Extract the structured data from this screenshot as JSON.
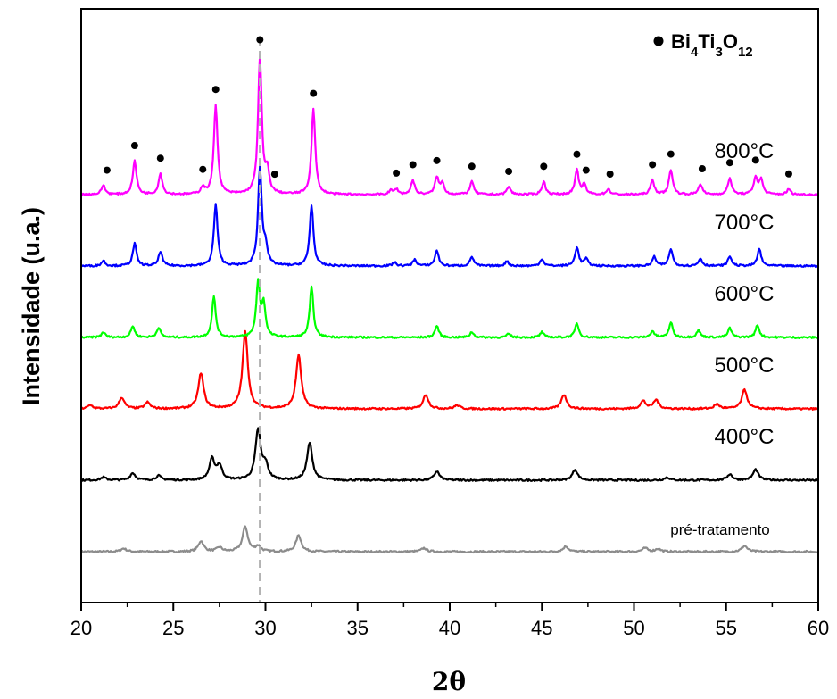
{
  "chart_data": {
    "type": "line",
    "xlabel_prefix": "2",
    "xlabel_symbol": "θ",
    "ylabel": "Intensidade (u.a.)",
    "xlim": [
      20,
      60
    ],
    "xticks": [
      20,
      25,
      30,
      35,
      40,
      45,
      50,
      55,
      60
    ],
    "y_ticks_shown": false,
    "grid": false,
    "reference_line_x": 29.7,
    "legend": {
      "position": "top-right",
      "marker": "filled-circle",
      "parts": [
        {
          "text": "Bi",
          "sub": false
        },
        {
          "text": "4",
          "sub": true
        },
        {
          "text": "Ti",
          "sub": false
        },
        {
          "text": "3",
          "sub": true
        },
        {
          "text": "O",
          "sub": false
        },
        {
          "text": "12",
          "sub": true
        }
      ]
    },
    "series": [
      {
        "name": "pré-tratamento",
        "color": "#8c8c8c",
        "baseline": 0,
        "peaks": [
          [
            22.3,
            0.9
          ],
          [
            26.5,
            3
          ],
          [
            27.5,
            1.2
          ],
          [
            28.9,
            7
          ],
          [
            29.6,
            1.5
          ],
          [
            31.8,
            4.6
          ],
          [
            38.6,
            1
          ],
          [
            46.3,
            1.5
          ],
          [
            50.6,
            1
          ],
          [
            51.3,
            0.8
          ],
          [
            56.0,
            1.7
          ]
        ]
      },
      {
        "name": "400°C",
        "color": "#000000",
        "baseline": 20,
        "peaks": [
          [
            21.2,
            0.8
          ],
          [
            22.8,
            2
          ],
          [
            24.2,
            1.2
          ],
          [
            27.1,
            5.8
          ],
          [
            27.5,
            4
          ],
          [
            29.6,
            14
          ],
          [
            30.0,
            4
          ],
          [
            32.4,
            10.5
          ],
          [
            39.3,
            2.5
          ],
          [
            46.8,
            3
          ],
          [
            51.8,
            0.8
          ],
          [
            55.2,
            1.7
          ],
          [
            56.6,
            3
          ]
        ]
      },
      {
        "name": "500°C",
        "color": "#ff0000",
        "baseline": 40,
        "peaks": [
          [
            20.5,
            1
          ],
          [
            22.2,
            3.2
          ],
          [
            23.6,
            1.8
          ],
          [
            26.5,
            10
          ],
          [
            28.9,
            21.5
          ],
          [
            31.8,
            15
          ],
          [
            38.7,
            4
          ],
          [
            40.4,
            1
          ],
          [
            46.2,
            4
          ],
          [
            50.5,
            2.2
          ],
          [
            51.2,
            2.5
          ],
          [
            54.5,
            1.3
          ],
          [
            56.0,
            5.4
          ]
        ]
      },
      {
        "name": "600°C",
        "color": "#00ff00",
        "baseline": 60,
        "peaks": [
          [
            21.2,
            1.5
          ],
          [
            22.8,
            3.2
          ],
          [
            24.2,
            2.8
          ],
          [
            27.2,
            11.4
          ],
          [
            29.6,
            15
          ],
          [
            29.9,
            9
          ],
          [
            32.5,
            14
          ],
          [
            39.3,
            3.3
          ],
          [
            41.2,
            1.5
          ],
          [
            43.2,
            1
          ],
          [
            45.0,
            1.5
          ],
          [
            46.9,
            4
          ],
          [
            51.0,
            1.8
          ],
          [
            52.0,
            4.2
          ],
          [
            53.5,
            2
          ],
          [
            55.2,
            2.6
          ],
          [
            56.7,
            3.5
          ]
        ]
      },
      {
        "name": "700°C",
        "color": "#0000ff",
        "baseline": 80,
        "peaks": [
          [
            21.2,
            1.5
          ],
          [
            22.9,
            6.3
          ],
          [
            24.3,
            4.1
          ],
          [
            27.3,
            17.2
          ],
          [
            29.7,
            27.5
          ],
          [
            30.0,
            5
          ],
          [
            32.5,
            17
          ],
          [
            37.0,
            1
          ],
          [
            38.1,
            1.8
          ],
          [
            39.3,
            4.4
          ],
          [
            41.2,
            2.6
          ],
          [
            43.1,
            1.3
          ],
          [
            45.0,
            2
          ],
          [
            46.9,
            5.3
          ],
          [
            47.4,
            2
          ],
          [
            51.1,
            2.6
          ],
          [
            52.0,
            4.8
          ],
          [
            53.6,
            2.1
          ],
          [
            55.2,
            2.7
          ],
          [
            56.8,
            4.8
          ]
        ]
      },
      {
        "name": "800°C",
        "color": "#ff00ff",
        "baseline": 100,
        "peaks": [
          [
            21.2,
            2.6
          ],
          [
            22.9,
            9.4
          ],
          [
            24.3,
            5.8
          ],
          [
            26.6,
            2
          ],
          [
            27.3,
            25
          ],
          [
            29.7,
            38.5
          ],
          [
            30.1,
            6
          ],
          [
            32.6,
            24
          ],
          [
            36.8,
            1
          ],
          [
            37.1,
            1.5
          ],
          [
            38.0,
            4
          ],
          [
            39.3,
            4.8
          ],
          [
            39.6,
            3
          ],
          [
            41.2,
            3.6
          ],
          [
            43.2,
            2.2
          ],
          [
            45.1,
            3.6
          ],
          [
            46.9,
            6.8
          ],
          [
            47.3,
            2.6
          ],
          [
            48.6,
            1.5
          ],
          [
            51.0,
            4
          ],
          [
            52.0,
            7
          ],
          [
            53.6,
            3
          ],
          [
            55.2,
            4.6
          ],
          [
            56.6,
            4.8
          ],
          [
            56.9,
            4
          ],
          [
            58.4,
            1.5
          ]
        ]
      }
    ],
    "markers_x": [
      21.4,
      22.9,
      24.3,
      26.6,
      27.3,
      29.7,
      30.5,
      32.6,
      37.1,
      38.0,
      39.3,
      41.2,
      43.2,
      45.1,
      46.9,
      47.4,
      48.7,
      51.0,
      52.0,
      53.7,
      55.2,
      56.6,
      58.4
    ]
  }
}
